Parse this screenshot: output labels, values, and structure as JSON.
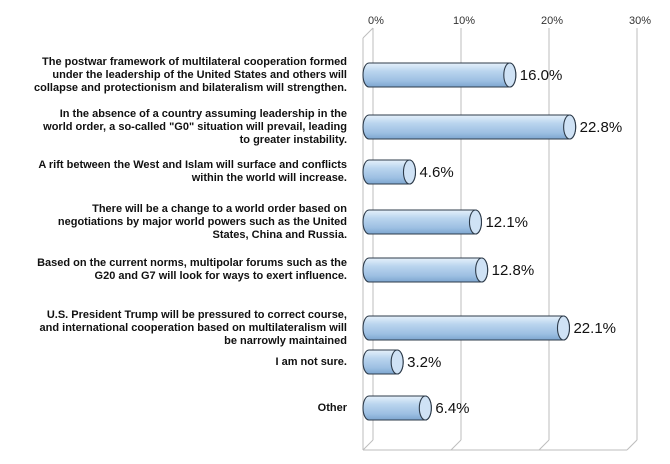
{
  "chart_data": {
    "type": "bar",
    "orientation": "horizontal",
    "style": "3d-cylinder",
    "xlim": [
      0,
      30
    ],
    "ticks": [
      0,
      10,
      20,
      30
    ],
    "tick_labels": [
      "0%",
      "10%",
      "20%",
      "30%"
    ],
    "grid": true,
    "bar_color": "#a8c8e8",
    "categories": [
      [
        "The postwar framework of multilateral cooperation formed",
        "under the leadership of the United States and others will",
        "collapse and protectionism and bilateralism will strengthen."
      ],
      [
        "In the absence of a country assuming leadership in the",
        "world order, a so-called \"G0\" situation will prevail, leading",
        "to greater instability."
      ],
      [
        "A rift between the West and Islam will surface and conflicts",
        "within the world will increase."
      ],
      [
        "There will be a change to a world order based on",
        "negotiations by major world powers such as the United",
        "States, China and Russia."
      ],
      [
        "Based on the current norms, multipolar forums such as the",
        "G20 and G7 will look for ways to exert influence."
      ],
      [
        "U.S. President Trump will be pressured to correct course,",
        "and international cooperation based on multilateralism will",
        "be narrowly maintained"
      ],
      [
        "I am not sure."
      ],
      [
        "Other"
      ]
    ],
    "values": [
      16.0,
      22.8,
      4.6,
      12.1,
      12.8,
      22.1,
      3.2,
      6.4
    ],
    "value_labels": [
      "16.0%",
      "22.8%",
      "4.6%",
      "12.1%",
      "12.8%",
      "22.1%",
      "3.2%",
      "6.4%"
    ]
  }
}
